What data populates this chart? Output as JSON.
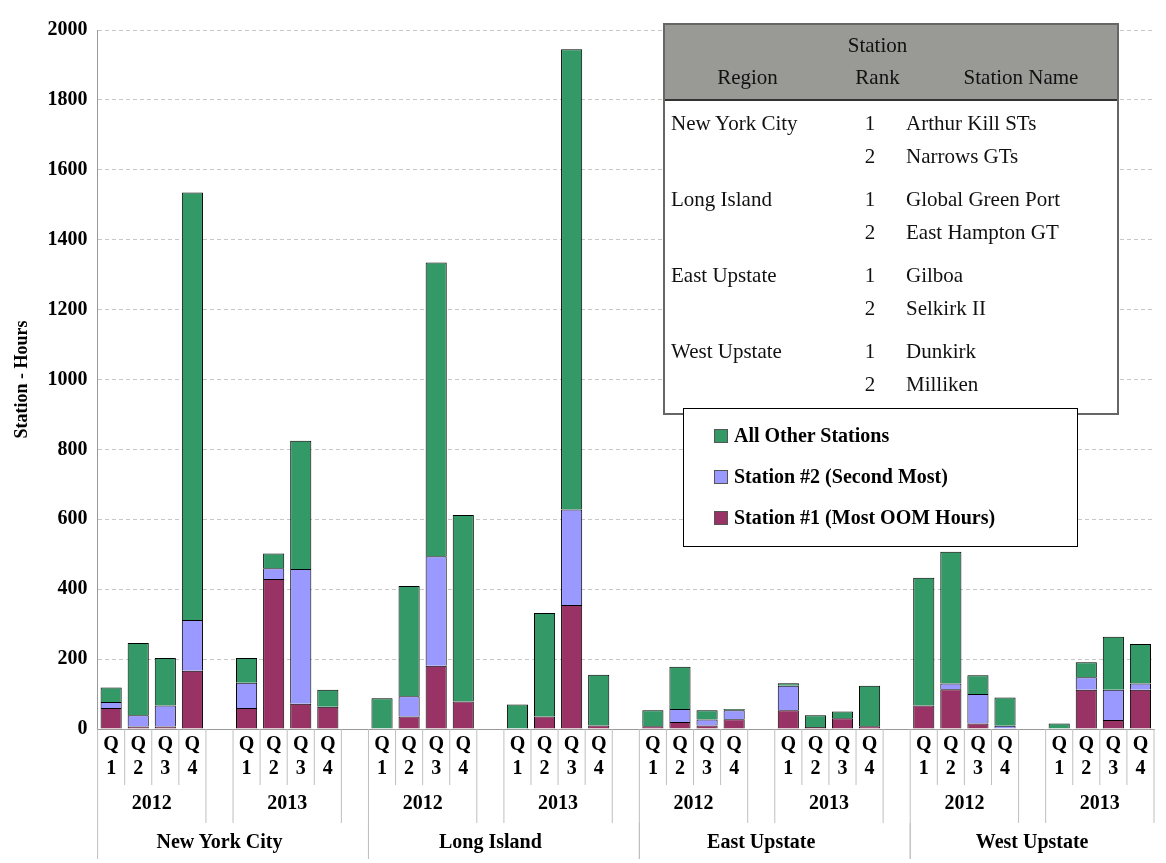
{
  "chart_data": {
    "type": "bar",
    "stacked": true,
    "ylabel": "Station - Hours",
    "categories": [
      "Q1",
      "Q2",
      "Q3",
      "Q4",
      null,
      "Q1",
      "Q2",
      "Q3",
      "Q4",
      null,
      "Q1",
      "Q2",
      "Q3",
      "Q4",
      null,
      "Q1",
      "Q2",
      "Q3",
      "Q4",
      null,
      "Q1",
      "Q2",
      "Q3",
      "Q4",
      null,
      "Q1",
      "Q2",
      "Q3",
      "Q4",
      null,
      "Q1",
      "Q2",
      "Q3",
      "Q4",
      null,
      "Q1",
      "Q2",
      "Q3",
      "Q4"
    ],
    "series": [
      {
        "name": "Station #1 (Most OOM Hours)",
        "color": "#993366",
        "values": [
          60,
          7,
          7,
          167,
          null,
          60,
          429,
          72,
          64,
          null,
          0,
          36,
          181,
          79,
          null,
          0,
          36,
          355,
          10,
          null,
          8,
          20,
          10,
          28,
          null,
          54,
          6,
          31,
          8,
          null,
          67,
          114,
          16,
          0,
          null,
          0,
          112,
          26,
          112
        ]
      },
      {
        "name": "Station #2 (Second Most)",
        "color": "#9999ff",
        "values": [
          17,
          32,
          60,
          145,
          null,
          72,
          31,
          386,
          0,
          null,
          0,
          58,
          313,
          0,
          null,
          0,
          0,
          273,
          0,
          null,
          0,
          37,
          17,
          26,
          null,
          70,
          0,
          0,
          0,
          null,
          0,
          16,
          84,
          9,
          null,
          0,
          36,
          86,
          18
        ]
      },
      {
        "name": "All Other Stations",
        "color": "#339966",
        "values": [
          42,
          207,
          136,
          1223,
          null,
          71,
          42,
          367,
          48,
          null,
          88,
          315,
          841,
          533,
          null,
          70,
          296,
          1317,
          145,
          null,
          46,
          121,
          27,
          3,
          null,
          7,
          33,
          19,
          116,
          null,
          366,
          377,
          54,
          81,
          null,
          16,
          43,
          152,
          113
        ]
      }
    ],
    "ylim": [
      0,
      2000
    ],
    "yticks": [
      0,
      200,
      400,
      600,
      800,
      1000,
      1200,
      1400,
      1600,
      1800,
      2000
    ],
    "grid": "y",
    "legend": "right",
    "annotations": [
      "2012",
      "2013",
      "2012",
      "2013",
      "2012",
      "2013",
      "2012",
      "2013",
      "New York City",
      "Long Island",
      "East Upstate",
      "West Upstate",
      "Region",
      "Station Rank",
      "Station Name",
      "New York City",
      "1",
      "Arthur Kill STs",
      "2",
      "Narrows GTs",
      "Long Island",
      "1",
      "Global Green Port",
      "2",
      "East Hampton GT",
      "East Upstate",
      "1",
      "Gilboa",
      "2",
      "Selkirk II",
      "West Upstate",
      "1",
      "Dunkirk",
      "2",
      "Milliken"
    ]
  }
}
